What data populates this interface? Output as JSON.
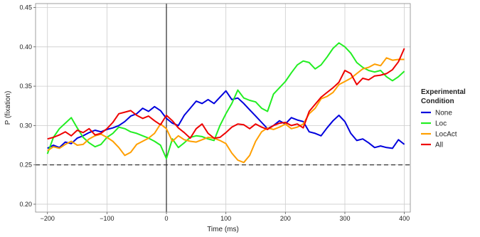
{
  "chart_data": {
    "type": "line",
    "xlabel": "Time (ms)",
    "ylabel": "P (fixation)",
    "xlim": [
      -220,
      410
    ],
    "ylim": [
      0.19,
      0.455
    ],
    "xticks": [
      -200,
      -100,
      0,
      100,
      200,
      300,
      400
    ],
    "yticks": [
      0.2,
      0.25,
      0.3,
      0.35,
      0.4,
      0.45
    ],
    "xtick_labels": [
      "−200",
      "−100",
      "0",
      "100",
      "200",
      "300",
      "400"
    ],
    "ytick_labels": [
      "0.20",
      "0.25",
      "0.30",
      "0.35",
      "0.40",
      "0.45"
    ],
    "grid": true,
    "vertical_reference_x": 0,
    "horizontal_reference_y": 0.25,
    "legend": {
      "title_line1": "Experimental",
      "title_line2": "Condition",
      "placement": "right"
    },
    "series": [
      {
        "name": "None",
        "color": "#0000dd",
        "points": [
          [
            -200,
            0.271
          ],
          [
            -190,
            0.275
          ],
          [
            -180,
            0.272
          ],
          [
            -170,
            0.279
          ],
          [
            -160,
            0.277
          ],
          [
            -150,
            0.284
          ],
          [
            -140,
            0.287
          ],
          [
            -130,
            0.291
          ],
          [
            -120,
            0.294
          ],
          [
            -110,
            0.292
          ],
          [
            -100,
            0.295
          ],
          [
            -90,
            0.297
          ],
          [
            -80,
            0.3
          ],
          [
            -70,
            0.305
          ],
          [
            -60,
            0.312
          ],
          [
            -50,
            0.315
          ],
          [
            -40,
            0.322
          ],
          [
            -30,
            0.318
          ],
          [
            -20,
            0.324
          ],
          [
            -10,
            0.319
          ],
          [
            0,
            0.309
          ],
          [
            10,
            0.303
          ],
          [
            20,
            0.3
          ],
          [
            30,
            0.313
          ],
          [
            40,
            0.322
          ],
          [
            50,
            0.331
          ],
          [
            60,
            0.328
          ],
          [
            70,
            0.333
          ],
          [
            80,
            0.328
          ],
          [
            90,
            0.336
          ],
          [
            100,
            0.344
          ],
          [
            110,
            0.333
          ],
          [
            120,
            0.335
          ],
          [
            130,
            0.328
          ],
          [
            140,
            0.32
          ],
          [
            150,
            0.312
          ],
          [
            160,
            0.304
          ],
          [
            170,
            0.296
          ],
          [
            180,
            0.3
          ],
          [
            190,
            0.306
          ],
          [
            200,
            0.302
          ],
          [
            210,
            0.31
          ],
          [
            220,
            0.307
          ],
          [
            230,
            0.305
          ],
          [
            240,
            0.292
          ],
          [
            250,
            0.29
          ],
          [
            260,
            0.287
          ],
          [
            270,
            0.297
          ],
          [
            280,
            0.306
          ],
          [
            290,
            0.313
          ],
          [
            300,
            0.305
          ],
          [
            310,
            0.29
          ],
          [
            320,
            0.281
          ],
          [
            330,
            0.283
          ],
          [
            340,
            0.278
          ],
          [
            350,
            0.272
          ],
          [
            360,
            0.274
          ],
          [
            370,
            0.272
          ],
          [
            380,
            0.271
          ],
          [
            390,
            0.282
          ],
          [
            400,
            0.276
          ]
        ]
      },
      {
        "name": "Loc",
        "color": "#22ee22",
        "points": [
          [
            -200,
            0.264
          ],
          [
            -190,
            0.285
          ],
          [
            -180,
            0.296
          ],
          [
            -170,
            0.303
          ],
          [
            -160,
            0.31
          ],
          [
            -150,
            0.297
          ],
          [
            -140,
            0.285
          ],
          [
            -130,
            0.278
          ],
          [
            -120,
            0.273
          ],
          [
            -110,
            0.276
          ],
          [
            -100,
            0.285
          ],
          [
            -90,
            0.29
          ],
          [
            -80,
            0.298
          ],
          [
            -70,
            0.296
          ],
          [
            -60,
            0.292
          ],
          [
            -50,
            0.29
          ],
          [
            -40,
            0.287
          ],
          [
            -30,
            0.284
          ],
          [
            -20,
            0.28
          ],
          [
            -10,
            0.275
          ],
          [
            0,
            0.258
          ],
          [
            10,
            0.283
          ],
          [
            20,
            0.272
          ],
          [
            30,
            0.278
          ],
          [
            40,
            0.285
          ],
          [
            50,
            0.287
          ],
          [
            60,
            0.286
          ],
          [
            70,
            0.283
          ],
          [
            80,
            0.281
          ],
          [
            90,
            0.3
          ],
          [
            100,
            0.315
          ],
          [
            110,
            0.328
          ],
          [
            120,
            0.345
          ],
          [
            130,
            0.335
          ],
          [
            140,
            0.332
          ],
          [
            150,
            0.33
          ],
          [
            160,
            0.322
          ],
          [
            170,
            0.318
          ],
          [
            180,
            0.34
          ],
          [
            190,
            0.348
          ],
          [
            200,
            0.356
          ],
          [
            210,
            0.367
          ],
          [
            220,
            0.377
          ],
          [
            230,
            0.382
          ],
          [
            240,
            0.38
          ],
          [
            250,
            0.372
          ],
          [
            260,
            0.377
          ],
          [
            270,
            0.387
          ],
          [
            280,
            0.398
          ],
          [
            290,
            0.405
          ],
          [
            300,
            0.4
          ],
          [
            310,
            0.392
          ],
          [
            320,
            0.38
          ],
          [
            330,
            0.374
          ],
          [
            340,
            0.37
          ],
          [
            350,
            0.368
          ],
          [
            360,
            0.37
          ],
          [
            370,
            0.362
          ],
          [
            380,
            0.357
          ],
          [
            390,
            0.362
          ],
          [
            400,
            0.369
          ]
        ]
      },
      {
        "name": "LocAct",
        "color": "#ff9f00",
        "points": [
          [
            -200,
            0.268
          ],
          [
            -190,
            0.273
          ],
          [
            -180,
            0.271
          ],
          [
            -170,
            0.276
          ],
          [
            -160,
            0.28
          ],
          [
            -150,
            0.275
          ],
          [
            -140,
            0.276
          ],
          [
            -130,
            0.283
          ],
          [
            -120,
            0.287
          ],
          [
            -110,
            0.289
          ],
          [
            -100,
            0.285
          ],
          [
            -90,
            0.28
          ],
          [
            -80,
            0.272
          ],
          [
            -70,
            0.262
          ],
          [
            -60,
            0.266
          ],
          [
            -50,
            0.276
          ],
          [
            -40,
            0.28
          ],
          [
            -30,
            0.284
          ],
          [
            -20,
            0.29
          ],
          [
            -10,
            0.302
          ],
          [
            0,
            0.296
          ],
          [
            10,
            0.28
          ],
          [
            20,
            0.287
          ],
          [
            30,
            0.282
          ],
          [
            40,
            0.28
          ],
          [
            50,
            0.279
          ],
          [
            60,
            0.282
          ],
          [
            70,
            0.285
          ],
          [
            80,
            0.284
          ],
          [
            90,
            0.281
          ],
          [
            100,
            0.277
          ],
          [
            110,
            0.265
          ],
          [
            120,
            0.256
          ],
          [
            130,
            0.253
          ],
          [
            140,
            0.262
          ],
          [
            150,
            0.28
          ],
          [
            160,
            0.292
          ],
          [
            170,
            0.297
          ],
          [
            180,
            0.295
          ],
          [
            190,
            0.298
          ],
          [
            200,
            0.302
          ],
          [
            210,
            0.296
          ],
          [
            220,
            0.298
          ],
          [
            230,
            0.302
          ],
          [
            240,
            0.315
          ],
          [
            250,
            0.322
          ],
          [
            260,
            0.334
          ],
          [
            270,
            0.337
          ],
          [
            280,
            0.342
          ],
          [
            290,
            0.352
          ],
          [
            300,
            0.356
          ],
          [
            310,
            0.36
          ],
          [
            320,
            0.366
          ],
          [
            330,
            0.372
          ],
          [
            340,
            0.374
          ],
          [
            350,
            0.378
          ],
          [
            360,
            0.376
          ],
          [
            370,
            0.386
          ],
          [
            380,
            0.383
          ],
          [
            390,
            0.384
          ],
          [
            400,
            0.384
          ]
        ]
      },
      {
        "name": "All",
        "color": "#ee0000",
        "points": [
          [
            -200,
            0.283
          ],
          [
            -190,
            0.285
          ],
          [
            -180,
            0.288
          ],
          [
            -170,
            0.292
          ],
          [
            -160,
            0.287
          ],
          [
            -150,
            0.294
          ],
          [
            -140,
            0.291
          ],
          [
            -130,
            0.296
          ],
          [
            -120,
            0.288
          ],
          [
            -110,
            0.29
          ],
          [
            -100,
            0.296
          ],
          [
            -90,
            0.304
          ],
          [
            -80,
            0.315
          ],
          [
            -70,
            0.317
          ],
          [
            -60,
            0.319
          ],
          [
            -50,
            0.313
          ],
          [
            -40,
            0.309
          ],
          [
            -30,
            0.312
          ],
          [
            -20,
            0.306
          ],
          [
            -10,
            0.301
          ],
          [
            0,
            0.313
          ],
          [
            10,
            0.306
          ],
          [
            20,
            0.297
          ],
          [
            30,
            0.291
          ],
          [
            40,
            0.284
          ],
          [
            50,
            0.296
          ],
          [
            60,
            0.302
          ],
          [
            70,
            0.29
          ],
          [
            80,
            0.284
          ],
          [
            90,
            0.285
          ],
          [
            100,
            0.291
          ],
          [
            110,
            0.298
          ],
          [
            120,
            0.302
          ],
          [
            130,
            0.301
          ],
          [
            140,
            0.296
          ],
          [
            150,
            0.302
          ],
          [
            160,
            0.298
          ],
          [
            170,
            0.295
          ],
          [
            180,
            0.3
          ],
          [
            190,
            0.303
          ],
          [
            200,
            0.304
          ],
          [
            210,
            0.3
          ],
          [
            220,
            0.302
          ],
          [
            230,
            0.297
          ],
          [
            240,
            0.318
          ],
          [
            250,
            0.327
          ],
          [
            260,
            0.336
          ],
          [
            270,
            0.342
          ],
          [
            280,
            0.348
          ],
          [
            290,
            0.355
          ],
          [
            300,
            0.37
          ],
          [
            310,
            0.366
          ],
          [
            320,
            0.352
          ],
          [
            330,
            0.36
          ],
          [
            340,
            0.358
          ],
          [
            350,
            0.363
          ],
          [
            360,
            0.364
          ],
          [
            370,
            0.366
          ],
          [
            380,
            0.371
          ],
          [
            390,
            0.381
          ],
          [
            400,
            0.398
          ]
        ]
      }
    ]
  }
}
